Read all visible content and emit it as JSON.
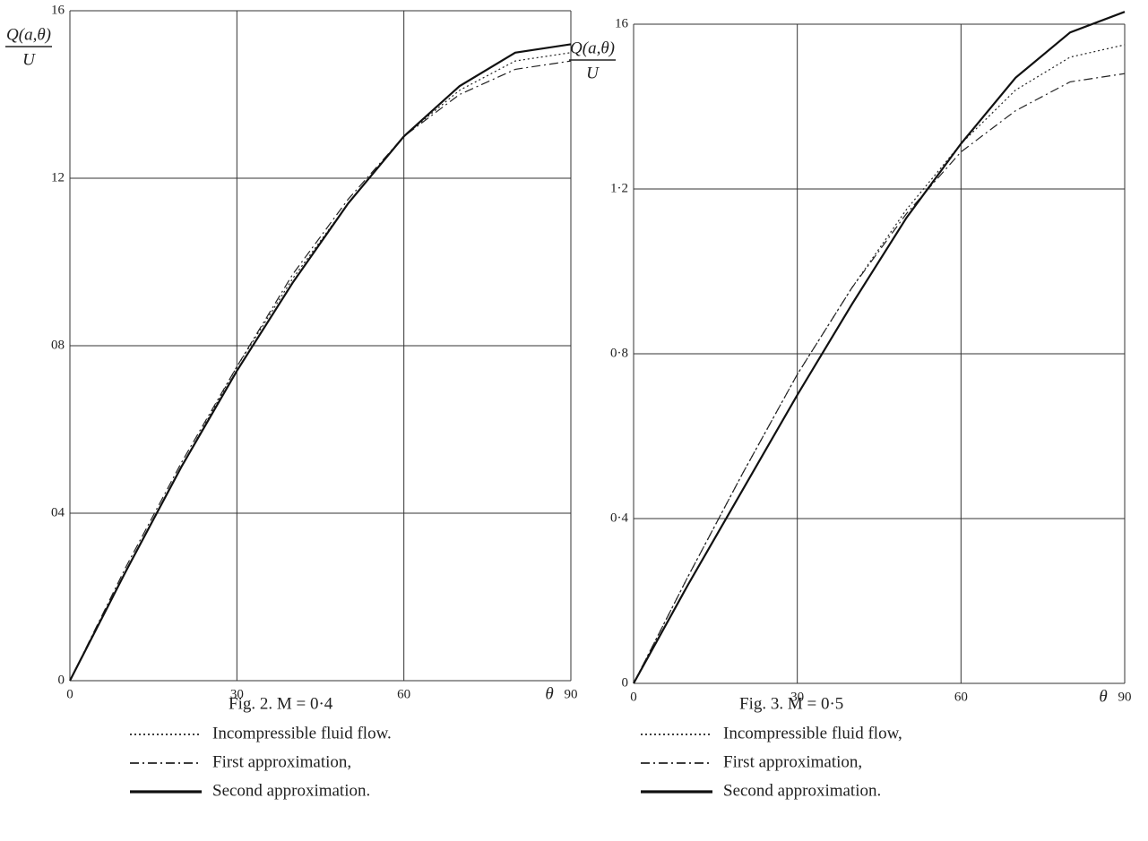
{
  "chart_data": [
    {
      "type": "line",
      "caption": "Fig. 2.   M = 0·4",
      "y_label_num": "Q(a,θ)",
      "y_label_den": "U",
      "x_label": "θ",
      "x": [
        0,
        10,
        20,
        30,
        40,
        50,
        60,
        70,
        80,
        90
      ],
      "xlim": [
        0,
        90
      ],
      "xticks": [
        0,
        30,
        60,
        90
      ],
      "ylim": [
        0,
        1.6
      ],
      "yticks": [
        0,
        {
          "value": 0.4,
          "label": "04"
        },
        {
          "value": 0.8,
          "label": "08"
        },
        {
          "value": 1.2,
          "label": "12"
        },
        {
          "value": 1.6,
          "label": "16"
        }
      ],
      "grid": true,
      "series": [
        {
          "name": "Incompressible fluid flow.",
          "color": "#222222",
          "style": "dotted",
          "values": [
            0,
            0.26,
            0.51,
            0.75,
            0.96,
            1.14,
            1.3,
            1.41,
            1.48,
            1.5
          ]
        },
        {
          "name": "First approximation,",
          "color": "#222222",
          "style": "dashdot",
          "values": [
            0,
            0.27,
            0.52,
            0.75,
            0.97,
            1.15,
            1.3,
            1.4,
            1.46,
            1.48
          ]
        },
        {
          "name": "Second approximation.",
          "color": "#111111",
          "style": "solid",
          "values": [
            0,
            0.26,
            0.51,
            0.74,
            0.95,
            1.14,
            1.3,
            1.42,
            1.5,
            1.52
          ]
        }
      ]
    },
    {
      "type": "line",
      "caption": "Fig. 3.   M = 0·5",
      "y_label_num": "Q(a,θ)",
      "y_label_den": "U",
      "x_label": "θ",
      "x": [
        0,
        10,
        20,
        30,
        40,
        50,
        60,
        70,
        80,
        90
      ],
      "xlim": [
        0,
        90
      ],
      "xticks": [
        0,
        30,
        60,
        90
      ],
      "ylim": [
        0,
        1.6
      ],
      "yticks": [
        0,
        {
          "value": 0.4,
          "label": "0·4"
        },
        {
          "value": 0.8,
          "label": "0·8"
        },
        {
          "value": 1.2,
          "label": "1·2"
        },
        {
          "value": 1.6,
          "label": "16"
        }
      ],
      "grid": true,
      "series": [
        {
          "name": "Incompressible fluid flow,",
          "color": "#222222",
          "style": "dotted",
          "values": [
            0,
            0.26,
            0.51,
            0.75,
            0.96,
            1.15,
            1.31,
            1.44,
            1.52,
            1.55
          ]
        },
        {
          "name": "First approximation,",
          "color": "#222222",
          "style": "dashdot",
          "values": [
            0,
            0.26,
            0.51,
            0.75,
            0.96,
            1.14,
            1.29,
            1.39,
            1.46,
            1.48
          ]
        },
        {
          "name": "Second approximation.",
          "color": "#111111",
          "style": "solid",
          "values": [
            0,
            0.24,
            0.47,
            0.7,
            0.92,
            1.13,
            1.31,
            1.47,
            1.58,
            1.63
          ]
        }
      ]
    }
  ]
}
